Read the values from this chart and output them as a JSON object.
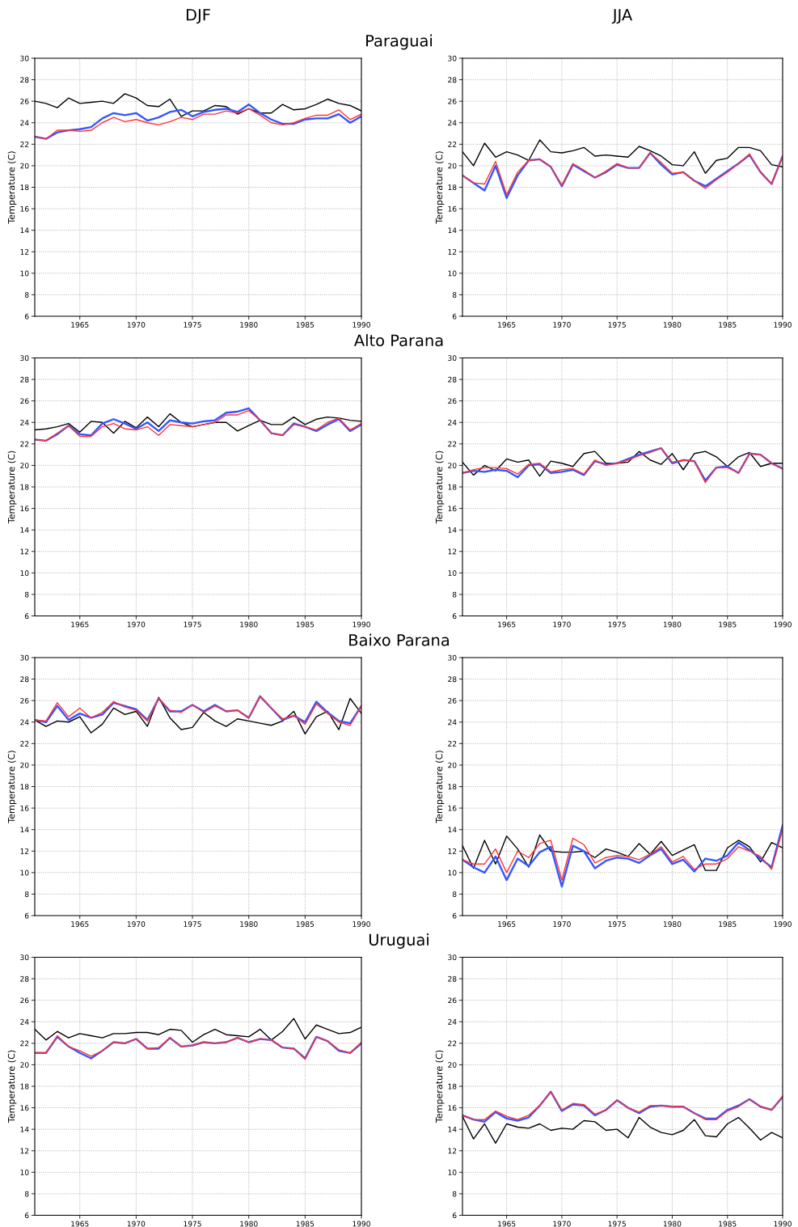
{
  "chart_data": [
    {
      "type": "line",
      "title": "Paraguai",
      "subtitle": "DJF",
      "ylabel": "Temperature (C)",
      "x": [
        1961,
        1962,
        1963,
        1964,
        1965,
        1966,
        1967,
        1968,
        1969,
        1970,
        1971,
        1972,
        1973,
        1974,
        1975,
        1976,
        1977,
        1978,
        1979,
        1980,
        1981,
        1982,
        1983,
        1984,
        1985,
        1986,
        1987,
        1988,
        1989,
        1990
      ],
      "xlim": [
        1961,
        1990
      ],
      "xticks": [
        1965,
        1970,
        1975,
        1980,
        1985,
        1990
      ],
      "ylim": [
        6,
        30
      ],
      "yticks": [
        6,
        8,
        10,
        12,
        14,
        16,
        18,
        20,
        22,
        24,
        26,
        28,
        30
      ],
      "grid": true,
      "line_style": "solid",
      "series": [
        {
          "color": "#000000",
          "values": [
            26.0,
            25.8,
            25.4,
            26.3,
            25.8,
            25.9,
            26.0,
            25.8,
            26.7,
            26.3,
            25.6,
            25.5,
            26.2,
            24.6,
            25.1,
            25.1,
            25.6,
            25.5,
            24.8,
            25.3,
            24.9,
            24.9,
            25.7,
            25.2,
            25.3,
            25.7,
            26.2,
            25.8,
            25.6,
            25.1
          ]
        },
        {
          "color": "#3355ff",
          "values": [
            22.7,
            22.5,
            23.1,
            23.3,
            23.4,
            23.6,
            24.4,
            24.9,
            24.7,
            24.9,
            24.2,
            24.5,
            25.0,
            25.2,
            24.6,
            25.0,
            25.2,
            25.3,
            25.0,
            25.7,
            24.9,
            24.3,
            23.9,
            23.9,
            24.3,
            24.4,
            24.4,
            24.8,
            24.0,
            24.6
          ]
        },
        {
          "color": "#ff3333",
          "values": [
            22.7,
            22.5,
            23.3,
            23.3,
            23.2,
            23.3,
            24.0,
            24.5,
            24.1,
            24.3,
            24.0,
            23.8,
            24.1,
            24.5,
            24.3,
            24.8,
            24.8,
            25.1,
            24.9,
            25.3,
            24.7,
            24.0,
            23.8,
            24.0,
            24.4,
            24.7,
            24.7,
            25.2,
            24.3,
            24.8
          ]
        }
      ]
    },
    {
      "type": "line",
      "subtitle": "JJA",
      "ylabel": "Temperature (C)",
      "x": [
        1961,
        1962,
        1963,
        1964,
        1965,
        1966,
        1967,
        1968,
        1969,
        1970,
        1971,
        1972,
        1973,
        1974,
        1975,
        1976,
        1977,
        1978,
        1979,
        1980,
        1981,
        1982,
        1983,
        1984,
        1985,
        1986,
        1987,
        1988,
        1989,
        1990
      ],
      "xlim": [
        1961,
        1990
      ],
      "xticks": [
        1965,
        1970,
        1975,
        1980,
        1985,
        1990
      ],
      "ylim": [
        6,
        30
      ],
      "yticks": [
        6,
        8,
        10,
        12,
        14,
        16,
        18,
        20,
        22,
        24,
        26,
        28,
        30
      ],
      "grid": true,
      "line_style": "solid",
      "series": [
        {
          "color": "#000000",
          "values": [
            21.3,
            20.0,
            22.1,
            20.8,
            21.3,
            21.0,
            20.5,
            22.4,
            21.3,
            21.2,
            21.4,
            21.7,
            20.9,
            21.0,
            20.9,
            20.8,
            21.8,
            21.4,
            20.9,
            20.1,
            20.0,
            21.3,
            19.3,
            20.5,
            20.7,
            21.7,
            21.7,
            21.4,
            20.1,
            19.9
          ]
        },
        {
          "color": "#3355ff",
          "values": [
            19.1,
            18.4,
            17.7,
            20.0,
            17.0,
            19.1,
            20.5,
            20.6,
            19.9,
            18.1,
            20.1,
            19.5,
            18.9,
            19.4,
            20.1,
            19.8,
            19.8,
            21.2,
            20.1,
            19.2,
            19.4,
            18.6,
            18.1,
            18.8,
            19.5,
            20.2,
            21.0,
            19.4,
            18.3,
            20.9
          ]
        },
        {
          "color": "#ff3333",
          "values": [
            19.1,
            18.4,
            18.3,
            20.4,
            17.3,
            19.4,
            20.5,
            20.6,
            19.9,
            18.2,
            20.2,
            19.6,
            18.9,
            19.5,
            20.2,
            19.8,
            19.8,
            21.2,
            20.3,
            19.3,
            19.4,
            18.6,
            17.9,
            18.7,
            19.4,
            20.2,
            21.1,
            19.4,
            18.3,
            20.9
          ]
        }
      ]
    },
    {
      "type": "line",
      "title": "Alto Parana",
      "ylabel": "Temperature (C)",
      "x": [
        1961,
        1962,
        1963,
        1964,
        1965,
        1966,
        1967,
        1968,
        1969,
        1970,
        1971,
        1972,
        1973,
        1974,
        1975,
        1976,
        1977,
        1978,
        1979,
        1980,
        1981,
        1982,
        1983,
        1984,
        1985,
        1986,
        1987,
        1988,
        1989,
        1990
      ],
      "xlim": [
        1961,
        1990
      ],
      "xticks": [
        1965,
        1970,
        1975,
        1980,
        1985,
        1990
      ],
      "ylim": [
        6,
        30
      ],
      "yticks": [
        6,
        8,
        10,
        12,
        14,
        16,
        18,
        20,
        22,
        24,
        26,
        28,
        30
      ],
      "grid": true,
      "line_style": "solid",
      "series": [
        {
          "color": "#000000",
          "values": [
            23.3,
            23.4,
            23.6,
            23.9,
            23.1,
            24.1,
            24.0,
            23.0,
            24.1,
            23.5,
            24.5,
            23.6,
            24.8,
            24.0,
            23.6,
            23.8,
            24.0,
            24.0,
            23.2,
            23.7,
            24.2,
            23.8,
            23.8,
            24.5,
            23.8,
            24.3,
            24.5,
            24.4,
            24.2,
            24.1
          ]
        },
        {
          "color": "#3355ff",
          "values": [
            22.4,
            22.3,
            22.9,
            23.7,
            22.9,
            22.8,
            23.9,
            24.3,
            23.9,
            23.4,
            24.0,
            23.2,
            24.2,
            24.0,
            23.9,
            24.1,
            24.2,
            24.9,
            25.0,
            25.3,
            24.2,
            23.0,
            22.8,
            23.9,
            23.6,
            23.2,
            23.8,
            24.3,
            23.2,
            23.8
          ]
        },
        {
          "color": "#ff3333",
          "values": [
            22.4,
            22.3,
            23.0,
            23.7,
            22.7,
            22.7,
            23.6,
            23.9,
            23.4,
            23.3,
            23.6,
            22.8,
            23.8,
            23.7,
            23.6,
            23.8,
            24.0,
            24.7,
            24.7,
            25.1,
            24.2,
            23.0,
            22.8,
            23.8,
            23.6,
            23.3,
            24.0,
            24.4,
            23.3,
            23.9
          ]
        }
      ]
    },
    {
      "type": "line",
      "ylabel": "Temperature (C)",
      "x": [
        1961,
        1962,
        1963,
        1964,
        1965,
        1966,
        1967,
        1968,
        1969,
        1970,
        1971,
        1972,
        1973,
        1974,
        1975,
        1976,
        1977,
        1978,
        1979,
        1980,
        1981,
        1982,
        1983,
        1984,
        1985,
        1986,
        1987,
        1988,
        1989,
        1990
      ],
      "xlim": [
        1961,
        1990
      ],
      "xticks": [
        1965,
        1970,
        1975,
        1980,
        1985,
        1990
      ],
      "ylim": [
        6,
        30
      ],
      "yticks": [
        6,
        8,
        10,
        12,
        14,
        16,
        18,
        20,
        22,
        24,
        26,
        28,
        30
      ],
      "grid": true,
      "line_style": "solid",
      "series": [
        {
          "color": "#000000",
          "values": [
            20.3,
            19.1,
            20.0,
            19.5,
            20.6,
            20.3,
            20.5,
            19.0,
            20.4,
            20.2,
            19.9,
            21.1,
            21.3,
            20.2,
            20.2,
            20.3,
            21.3,
            20.5,
            20.1,
            21.1,
            19.6,
            21.1,
            21.3,
            20.8,
            19.9,
            20.8,
            21.2,
            19.9,
            20.2,
            20.2
          ]
        },
        {
          "color": "#3355ff",
          "values": [
            19.3,
            19.5,
            19.4,
            19.6,
            19.5,
            18.9,
            20.0,
            20.1,
            19.3,
            19.4,
            19.6,
            19.1,
            20.4,
            20.1,
            20.2,
            20.6,
            21.0,
            21.3,
            21.6,
            20.2,
            20.5,
            20.4,
            18.6,
            19.8,
            19.9,
            19.3,
            21.1,
            21.0,
            20.2,
            19.7
          ]
        },
        {
          "color": "#ff3333",
          "values": [
            19.3,
            19.6,
            19.8,
            19.8,
            19.7,
            19.2,
            20.1,
            20.2,
            19.4,
            19.6,
            19.7,
            19.2,
            20.5,
            20.0,
            20.2,
            20.5,
            20.9,
            21.2,
            21.6,
            20.3,
            20.5,
            20.4,
            18.4,
            19.8,
            19.8,
            19.3,
            21.1,
            21.0,
            20.2,
            19.7
          ]
        }
      ]
    },
    {
      "type": "line",
      "title": "Baixo Parana",
      "ylabel": "Temperature (C)",
      "x": [
        1961,
        1962,
        1963,
        1964,
        1965,
        1966,
        1967,
        1968,
        1969,
        1970,
        1971,
        1972,
        1973,
        1974,
        1975,
        1976,
        1977,
        1978,
        1979,
        1980,
        1981,
        1982,
        1983,
        1984,
        1985,
        1986,
        1987,
        1988,
        1989,
        1990
      ],
      "xlim": [
        1961,
        1990
      ],
      "xticks": [
        1965,
        1970,
        1975,
        1980,
        1985,
        1990
      ],
      "ylim": [
        6,
        30
      ],
      "yticks": [
        6,
        8,
        10,
        12,
        14,
        16,
        18,
        20,
        22,
        24,
        26,
        28,
        30
      ],
      "grid": true,
      "line_style": "solid",
      "series": [
        {
          "color": "#000000",
          "values": [
            24.2,
            23.6,
            24.1,
            24.0,
            24.5,
            23.0,
            23.8,
            25.3,
            24.7,
            25.0,
            23.6,
            26.3,
            24.4,
            23.3,
            23.5,
            24.9,
            24.1,
            23.6,
            24.3,
            24.1,
            23.9,
            23.7,
            24.1,
            25.0,
            22.9,
            24.5,
            25.0,
            23.3,
            26.2,
            24.8
          ]
        },
        {
          "color": "#3355ff",
          "values": [
            24.2,
            24.0,
            25.5,
            24.2,
            24.8,
            24.4,
            24.7,
            25.8,
            25.5,
            25.2,
            24.2,
            26.2,
            25.0,
            25.0,
            25.6,
            25.0,
            25.6,
            25.0,
            25.1,
            24.4,
            26.4,
            25.3,
            24.2,
            24.6,
            24.0,
            25.9,
            24.9,
            24.1,
            23.9,
            25.5
          ]
        },
        {
          "color": "#ff3333",
          "values": [
            24.2,
            24.1,
            25.8,
            24.5,
            25.3,
            24.4,
            24.9,
            25.9,
            25.4,
            25.1,
            24.1,
            26.2,
            25.1,
            24.9,
            25.6,
            24.9,
            25.5,
            25.0,
            25.1,
            24.4,
            26.4,
            25.3,
            24.3,
            24.6,
            23.8,
            25.7,
            24.8,
            24.0,
            23.7,
            25.5
          ]
        }
      ]
    },
    {
      "type": "line",
      "ylabel": "Temperature (C)",
      "x": [
        1961,
        1962,
        1963,
        1964,
        1965,
        1966,
        1967,
        1968,
        1969,
        1970,
        1971,
        1972,
        1973,
        1974,
        1975,
        1976,
        1977,
        1978,
        1979,
        1980,
        1981,
        1982,
        1983,
        1984,
        1985,
        1986,
        1987,
        1988,
        1989,
        1990
      ],
      "xlim": [
        1961,
        1990
      ],
      "xticks": [
        1965,
        1970,
        1975,
        1980,
        1985,
        1990
      ],
      "ylim": [
        6,
        30
      ],
      "yticks": [
        6,
        8,
        10,
        12,
        14,
        16,
        18,
        20,
        22,
        24,
        26,
        28,
        30
      ],
      "grid": true,
      "line_style": "solid",
      "series": [
        {
          "color": "#000000",
          "values": [
            12.5,
            10.4,
            13.0,
            10.8,
            13.4,
            12.2,
            10.5,
            13.5,
            12.0,
            11.9,
            11.9,
            12.0,
            11.4,
            12.2,
            11.9,
            11.5,
            12.7,
            11.7,
            12.9,
            11.6,
            12.1,
            12.6,
            10.2,
            10.2,
            12.3,
            13.0,
            12.4,
            11.0,
            12.8,
            12.3
          ]
        },
        {
          "color": "#3355ff",
          "values": [
            11.2,
            10.5,
            10.0,
            11.5,
            9.3,
            11.3,
            10.6,
            11.9,
            12.4,
            8.7,
            12.5,
            12.0,
            10.4,
            11.1,
            11.4,
            11.3,
            10.9,
            11.6,
            12.2,
            10.8,
            11.2,
            10.1,
            11.3,
            11.1,
            11.6,
            12.8,
            12.1,
            11.3,
            10.5,
            14.4
          ]
        },
        {
          "color": "#ff3333",
          "values": [
            11.2,
            10.8,
            10.8,
            12.2,
            10.0,
            12.0,
            11.4,
            12.7,
            13.0,
            9.3,
            13.2,
            12.6,
            10.9,
            11.4,
            11.6,
            11.5,
            11.2,
            11.7,
            12.4,
            11.0,
            11.5,
            10.3,
            10.8,
            10.8,
            11.3,
            12.4,
            12.0,
            11.5,
            10.3,
            14.0
          ]
        }
      ]
    },
    {
      "type": "line",
      "title": "Uruguai",
      "ylabel": "Temperature (C)",
      "x": [
        1961,
        1962,
        1963,
        1964,
        1965,
        1966,
        1967,
        1968,
        1969,
        1970,
        1971,
        1972,
        1973,
        1974,
        1975,
        1976,
        1977,
        1978,
        1979,
        1980,
        1981,
        1982,
        1983,
        1984,
        1985,
        1986,
        1987,
        1988,
        1989,
        1990
      ],
      "xlim": [
        1961,
        1990
      ],
      "xticks": [
        1965,
        1970,
        1975,
        1980,
        1985,
        1990
      ],
      "ylim": [
        6,
        30
      ],
      "yticks": [
        6,
        8,
        10,
        12,
        14,
        16,
        18,
        20,
        22,
        24,
        26,
        28,
        30
      ],
      "grid": true,
      "line_style": "solid",
      "series": [
        {
          "color": "#000000",
          "values": [
            23.3,
            22.3,
            23.1,
            22.5,
            22.9,
            22.7,
            22.5,
            22.9,
            22.9,
            23.0,
            23.0,
            22.8,
            23.3,
            23.2,
            22.1,
            22.8,
            23.3,
            22.8,
            22.7,
            22.6,
            23.3,
            22.3,
            23.1,
            24.3,
            22.4,
            23.7,
            23.3,
            22.9,
            23.0,
            23.5
          ]
        },
        {
          "color": "#3355ff",
          "values": [
            21.1,
            21.1,
            22.6,
            21.7,
            21.1,
            20.6,
            21.3,
            22.1,
            22.0,
            22.4,
            21.5,
            21.5,
            22.5,
            21.7,
            21.8,
            22.1,
            22.0,
            22.1,
            22.5,
            22.1,
            22.4,
            22.3,
            21.6,
            21.5,
            20.6,
            22.6,
            22.2,
            21.3,
            21.1,
            22.0
          ]
        },
        {
          "color": "#ff3333",
          "values": [
            21.1,
            21.1,
            22.7,
            21.7,
            21.3,
            20.8,
            21.3,
            22.1,
            22.0,
            22.4,
            21.5,
            21.6,
            22.5,
            21.7,
            21.8,
            22.1,
            22.0,
            22.1,
            22.5,
            22.1,
            22.4,
            22.3,
            21.6,
            21.5,
            20.5,
            22.6,
            22.2,
            21.4,
            21.1,
            22.1
          ]
        }
      ]
    },
    {
      "type": "line",
      "ylabel": "Temperature (C)",
      "x": [
        1961,
        1962,
        1963,
        1964,
        1965,
        1966,
        1967,
        1968,
        1969,
        1970,
        1971,
        1972,
        1973,
        1974,
        1975,
        1976,
        1977,
        1978,
        1979,
        1980,
        1981,
        1982,
        1983,
        1984,
        1985,
        1986,
        1987,
        1988,
        1989,
        1990
      ],
      "xlim": [
        1961,
        1990
      ],
      "xticks": [
        1965,
        1970,
        1975,
        1980,
        1985,
        1990
      ],
      "ylim": [
        6,
        30
      ],
      "yticks": [
        6,
        8,
        10,
        12,
        14,
        16,
        18,
        20,
        22,
        24,
        26,
        28,
        30
      ],
      "grid": true,
      "line_style": "solid",
      "series": [
        {
          "color": "#000000",
          "values": [
            15.2,
            13.1,
            14.5,
            12.7,
            14.5,
            14.2,
            14.1,
            14.5,
            13.9,
            14.1,
            14.0,
            14.8,
            14.7,
            13.9,
            14.0,
            13.2,
            15.1,
            14.2,
            13.7,
            13.5,
            13.9,
            14.9,
            13.4,
            13.3,
            14.5,
            15.1,
            14.1,
            13.0,
            13.7,
            13.2
          ]
        },
        {
          "color": "#3355ff",
          "values": [
            15.3,
            14.9,
            14.7,
            15.6,
            15.0,
            14.8,
            15.1,
            16.2,
            17.5,
            15.7,
            16.3,
            16.2,
            15.3,
            15.8,
            16.7,
            16.0,
            15.5,
            16.1,
            16.2,
            16.1,
            16.1,
            15.5,
            15.0,
            15.0,
            15.8,
            16.2,
            16.8,
            16.1,
            15.8,
            17.0
          ]
        },
        {
          "color": "#ff3333",
          "values": [
            15.3,
            14.9,
            14.9,
            15.7,
            15.2,
            14.9,
            15.3,
            16.2,
            17.5,
            15.8,
            16.4,
            16.3,
            15.4,
            15.8,
            16.7,
            16.0,
            15.6,
            16.2,
            16.2,
            16.1,
            16.1,
            15.5,
            14.9,
            14.9,
            15.7,
            16.1,
            16.8,
            16.1,
            15.8,
            17.1
          ]
        }
      ]
    }
  ]
}
